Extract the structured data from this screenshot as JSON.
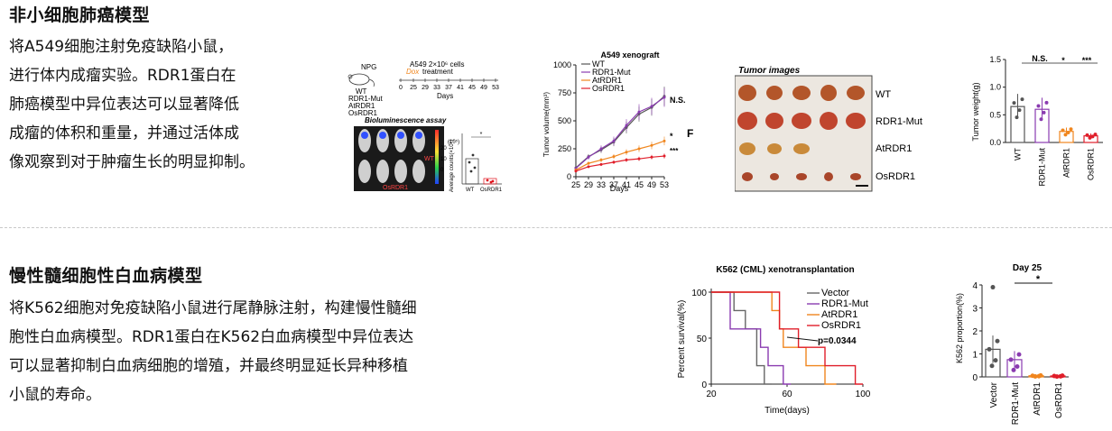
{
  "section1": {
    "title": "非小细胞肺癌模型",
    "lines": [
      "将A549细胞注射免疫缺陷小鼠，",
      "进行体内成瘤实验。RDR1蛋白在",
      "肺癌模型中异位表达可以显著降低",
      "成瘤的体积和重量，并通过活体成",
      "像观察到对于肿瘤生长的明显抑制。"
    ],
    "schematic": {
      "mouse_label": "NPG",
      "cells_label": "A549 2×10⁶ cells",
      "dox_label": "Dox",
      "treatment_label": "treatment",
      "groups": [
        "WT",
        "RDR1-Mut",
        "AtRDR1",
        "OsRDR1"
      ],
      "days": [
        "0",
        "25",
        "29",
        "33",
        "37",
        "41",
        "45",
        "49",
        "53"
      ],
      "days_label": "Days"
    },
    "bioluminescence": {
      "title": "Bioluminescence assay",
      "label_top": "WT",
      "label_bottom": "OsRDR1",
      "scale_unit": "(10⁵)",
      "scale_ticks": [
        "20",
        "10",
        "0"
      ],
      "ylabel": "Average counts(×10⁵)",
      "sig": "*",
      "groups": [
        "WT",
        "OsRDR1"
      ],
      "accent": "#e0101a"
    },
    "volume_chart": {
      "title": "A549 xenograft",
      "ylabel": "Tumor volume(mm³)",
      "xlabel": "Days",
      "x": [
        25,
        29,
        33,
        37,
        41,
        45,
        49,
        53
      ],
      "yticks": [
        "0",
        "250",
        "500",
        "750",
        "1000"
      ],
      "ylim": [
        0,
        1000
      ],
      "series": [
        {
          "name": "WT",
          "color": "#555555",
          "values": [
            80,
            180,
            240,
            310,
            440,
            560,
            620,
            720
          ]
        },
        {
          "name": "RDR1-Mut",
          "color": "#8a3bb0",
          "values": [
            75,
            175,
            250,
            320,
            460,
            580,
            630,
            710
          ]
        },
        {
          "name": "AtRDR1",
          "color": "#f0861e",
          "values": [
            60,
            120,
            150,
            180,
            220,
            250,
            280,
            320
          ]
        },
        {
          "name": "OsRDR1",
          "color": "#e01e2a",
          "values": [
            50,
            90,
            110,
            130,
            150,
            160,
            175,
            185
          ]
        }
      ],
      "annotations": [
        "N.S.",
        "*",
        "***"
      ],
      "panel_letter": "F"
    },
    "tumor_images": {
      "title": "Tumor images",
      "rows": [
        "WT",
        "RDR1-Mut",
        "AtRDR1",
        "OsRDR1"
      ]
    },
    "weight_chart": {
      "ylabel": "Tumor weight(g)",
      "yticks": [
        "0.0",
        "0.5",
        "1.0",
        "1.5"
      ],
      "ylim": [
        0,
        1.5
      ],
      "categories": [
        "WT",
        "RDR1-Mut",
        "AtRDR1",
        "OsRDR1"
      ],
      "values": [
        0.65,
        0.6,
        0.2,
        0.12
      ],
      "colors": [
        "#555555",
        "#8a3bb0",
        "#f0861e",
        "#e01e2a"
      ],
      "sig": [
        "N.S.",
        "*",
        "***"
      ]
    }
  },
  "section2": {
    "title": "慢性髓细胞性白血病模型",
    "lines": [
      "将K562细胞对免疫缺陷小鼠进行尾静脉注射，构建慢性髓细",
      "胞性白血病模型。RDR1蛋白在K562白血病模型中异位表达",
      "可以显著抑制白血病细胞的增殖，并最终明显延长异种移植",
      "小鼠的寿命。"
    ],
    "survival_chart": {
      "title": "K562 (CML) xenotransplantation",
      "ylabel": "Percent survival(%)",
      "xlabel": "Time(days)",
      "xticks": [
        "20",
        "60",
        "100"
      ],
      "yticks": [
        "0",
        "50",
        "100"
      ],
      "xlim": [
        20,
        100
      ],
      "ylim": [
        0,
        100
      ],
      "series": [
        {
          "name": "Vector",
          "color": "#666666",
          "steps": [
            [
              20,
              100
            ],
            [
              32,
              100
            ],
            [
              32,
              80
            ],
            [
              38,
              80
            ],
            [
              38,
              60
            ],
            [
              44,
              60
            ],
            [
              44,
              20
            ],
            [
              48,
              20
            ],
            [
              48,
              0
            ],
            [
              52,
              0
            ]
          ]
        },
        {
          "name": "RDR1-Mut",
          "color": "#8a3bb0",
          "steps": [
            [
              20,
              100
            ],
            [
              30,
              100
            ],
            [
              30,
              60
            ],
            [
              46,
              60
            ],
            [
              46,
              40
            ],
            [
              50,
              40
            ],
            [
              50,
              20
            ],
            [
              58,
              20
            ],
            [
              58,
              0
            ],
            [
              62,
              0
            ]
          ]
        },
        {
          "name": "AtRDR1",
          "color": "#f0861e",
          "steps": [
            [
              20,
              100
            ],
            [
              52,
              100
            ],
            [
              52,
              80
            ],
            [
              56,
              80
            ],
            [
              56,
              60
            ],
            [
              58,
              60
            ],
            [
              58,
              40
            ],
            [
              70,
              40
            ],
            [
              70,
              20
            ],
            [
              80,
              20
            ],
            [
              80,
              0
            ],
            [
              86,
              0
            ]
          ]
        },
        {
          "name": "OsRDR1",
          "color": "#e01e2a",
          "steps": [
            [
              20,
              100
            ],
            [
              56,
              100
            ],
            [
              56,
              60
            ],
            [
              66,
              60
            ],
            [
              66,
              40
            ],
            [
              80,
              40
            ],
            [
              80,
              20
            ],
            [
              96,
              20
            ],
            [
              96,
              0
            ],
            [
              100,
              0
            ]
          ]
        }
      ],
      "pvalue": "p=0.0344"
    },
    "proportion_chart": {
      "title": "Day 25",
      "ylabel": "K562 proportion(%)",
      "yticks": [
        "0",
        "1",
        "2",
        "3",
        "4"
      ],
      "ylim": [
        0,
        4
      ],
      "categories": [
        "Vector",
        "RDR1-Mut",
        "AtRDR1",
        "OsRDR1"
      ],
      "values": [
        1.2,
        0.75,
        0.05,
        0.04
      ],
      "colors": [
        "#555555",
        "#8a3bb0",
        "#f0861e",
        "#e01e2a"
      ],
      "sig": "*"
    }
  }
}
